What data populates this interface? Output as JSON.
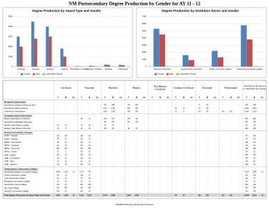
{
  "title": "NM Postsecondary Degree Production by Gender for AY 11 - 12",
  "chart_data": [
    {
      "type": "bar",
      "title": "Degree Production by Award Type and Gender",
      "categories": [
        "Certificate",
        "Associate",
        "Bachelor",
        "Masters",
        "Post Masters Certificate",
        "Graduate Certificate",
        "Doctorate",
        "Professional"
      ],
      "series": [
        {
          "name": "Female",
          "color": "#4f81bd",
          "values": [
            3000,
            4500,
            4000,
            1800,
            40,
            90,
            190,
            170
          ]
        },
        {
          "name": "Male",
          "color": "#c0504d",
          "values": [
            2000,
            2800,
            3000,
            1000,
            20,
            40,
            170,
            130
          ]
        },
        {
          "name": "Unidentified Gender",
          "color": "#9bbb59",
          "values": [
            30,
            40,
            20,
            10,
            0,
            0,
            0,
            0
          ]
        }
      ],
      "ylim": [
        0,
        5000
      ],
      "yticks": [
        0,
        1000,
        2000,
        3000,
        4000,
        5000
      ],
      "grid": true
    },
    {
      "type": "bar",
      "title": "Degree Production by Institution Sector and Gender",
      "categories": [
        "Research Universities",
        "Comprehensive Universities",
        "Branch Community Colleges",
        "Independent Community Colleges"
      ],
      "series": [
        {
          "name": "Female",
          "color": "#4f81bd",
          "values": [
            5300,
            1600,
            2200,
            5800
          ]
        },
        {
          "name": "Male",
          "color": "#c0504d",
          "values": [
            4500,
            900,
            1300,
            3800
          ]
        },
        {
          "name": "Unidentified Gender",
          "color": "#9bbb59",
          "values": [
            20,
            10,
            30,
            60
          ]
        }
      ],
      "ylim": [
        0,
        7000
      ],
      "yticks": [
        0,
        1000,
        2000,
        3000,
        4000,
        5000,
        6000,
        7000
      ],
      "grid": true
    }
  ],
  "table": {
    "groups": [
      "Certificate",
      "Associate",
      "Bachelor",
      "Masters",
      "Post Masters Certificate",
      "Graduate Certificate",
      "Doctorate",
      "Professional",
      "Total Degree Production by Institution and Gender"
    ],
    "subheaders": [
      "F",
      "M",
      "N+"
    ],
    "sections": [
      {
        "title": "Research Universities",
        "rows": [
          {
            "label": "New Mexico Institute of Mining & Tech",
            "cells": [
              "-",
              "-",
              "-",
              "-",
              "-",
              "-",
              "65",
              "188",
              "-",
              "54",
              "120",
              "-",
              "-",
              "-",
              "-",
              "-",
              "-",
              "-",
              "6",
              "22",
              "-",
              "-",
              "-",
              "-",
              "125",
              "330",
              "-"
            ]
          },
          {
            "label": "New Mexico State University",
            "cells": [
              "-",
              "-",
              "-",
              "-",
              "-",
              "-",
              "1,371",
              "1,067",
              "-",
              "563",
              "340",
              "-",
              "-",
              "-",
              "-",
              "25",
              "12",
              "-",
              "61",
              "48",
              "-",
              "-",
              "-",
              "-",
              "2,020",
              "1,467",
              "-"
            ]
          },
          {
            "label": "University of New Mexico",
            "cells": [
              "-",
              "-",
              "-",
              "-",
              "-",
              "-",
              "1,961",
              "1,393",
              "-",
              "789",
              "500",
              "-",
              "-",
              "-",
              "-",
              "21",
              "8",
              "-",
              "114",
              "95",
              "-",
              "161",
              "122",
              "-",
              "3,046",
              "2,118",
              "-"
            ]
          }
        ]
      },
      {
        "title": "Comprehensive Universities",
        "rows": [
          {
            "label": "Eastern New Mexico University",
            "cells": [
              "-",
              "-",
              "-",
              "28",
              "12",
              "-",
              "432",
              "270",
              "-",
              "230",
              "98",
              "-",
              "-",
              "-",
              "-",
              "-",
              "-",
              "-",
              "-",
              "-",
              "-",
              "-",
              "-",
              "-",
              "690",
              "380",
              "-"
            ]
          },
          {
            "label": "New Mexico Highlands University",
            "cells": [
              "-",
              "-",
              "-",
              "-",
              "-",
              "-",
              "245",
              "140",
              "-",
              "310",
              "150",
              "-",
              "-",
              "-",
              "-",
              "-",
              "-",
              "-",
              "-",
              "-",
              "-",
              "-",
              "-",
              "-",
              "555",
              "290",
              "-"
            ]
          },
          {
            "label": "Northern New Mexico College",
            "cells": [
              "40",
              "22",
              "-",
              "75",
              "38",
              "-",
              "52",
              "20",
              "-",
              "-",
              "-",
              "-",
              "-",
              "-",
              "-",
              "-",
              "-",
              "-",
              "-",
              "-",
              "-",
              "-",
              "-",
              "-",
              "167",
              "80",
              "-"
            ]
          },
          {
            "label": "Western New Mexico University",
            "cells": [
              "12",
              "8",
              "-",
              "40",
              "20",
              "-",
              "150",
              "80",
              "-",
              "90",
              "40",
              "-",
              "-",
              "-",
              "-",
              "-",
              "-",
              "-",
              "-",
              "-",
              "-",
              "-",
              "-",
              "-",
              "292",
              "148",
              "-"
            ]
          }
        ]
      },
      {
        "title": "Branch Community Colleges",
        "rows": [
          {
            "label": "ENMU - Roswell",
            "cells": [
              "220",
              "180",
              "-",
              "190",
              "110",
              "-",
              "-",
              "-",
              "-",
              "-",
              "-",
              "-",
              "-",
              "-",
              "-",
              "-",
              "-",
              "-",
              "-",
              "-",
              "-",
              "-",
              "-",
              "-",
              "410",
              "290",
              "-"
            ]
          },
          {
            "label": "ENMU - Ruidoso",
            "cells": [
              "48",
              "40",
              "-",
              "30",
              "12",
              "-",
              "-",
              "-",
              "-",
              "-",
              "-",
              "-",
              "-",
              "-",
              "-",
              "-",
              "-",
              "-",
              "-",
              "-",
              "-",
              "-",
              "-",
              "-",
              "78",
              "52",
              "-"
            ]
          },
          {
            "label": "NMSU - Alamogordo",
            "cells": [
              "60",
              "42",
              "-",
              "120",
              "70",
              "-",
              "-",
              "-",
              "-",
              "-",
              "-",
              "-",
              "-",
              "-",
              "-",
              "-",
              "-",
              "-",
              "-",
              "-",
              "-",
              "-",
              "-",
              "-",
              "180",
              "112",
              "-"
            ]
          },
          {
            "label": "NMSU - Carlsbad",
            "cells": [
              "40",
              "28",
              "-",
              "80",
              "40",
              "-",
              "-",
              "-",
              "-",
              "-",
              "-",
              "-",
              "-",
              "-",
              "-",
              "-",
              "-",
              "-",
              "-",
              "-",
              "-",
              "-",
              "-",
              "-",
              "120",
              "68",
              "-"
            ]
          },
          {
            "label": "NMSU - Dona Ana",
            "cells": [
              "260",
              "210",
              "-",
              "430",
              "250",
              "-",
              "-",
              "-",
              "-",
              "-",
              "-",
              "-",
              "-",
              "-",
              "-",
              "-",
              "-",
              "-",
              "-",
              "-",
              "-",
              "-",
              "-",
              "-",
              "690",
              "460",
              "-"
            ]
          },
          {
            "label": "NMSU - Grants",
            "cells": [
              "20",
              "8",
              "-",
              "45",
              "15",
              "-",
              "-",
              "-",
              "-",
              "-",
              "-",
              "-",
              "-",
              "-",
              "-",
              "-",
              "-",
              "-",
              "-",
              "-",
              "-",
              "-",
              "-",
              "-",
              "65",
              "23",
              "-"
            ]
          },
          {
            "label": "UNM - Gallup",
            "cells": [
              "110",
              "60",
              "-",
              "140",
              "60",
              "-",
              "-",
              "-",
              "-",
              "-",
              "-",
              "-",
              "-",
              "-",
              "-",
              "-",
              "-",
              "-",
              "-",
              "-",
              "-",
              "-",
              "-",
              "-",
              "250",
              "120",
              "-"
            ]
          },
          {
            "label": "UNM - Los Alamos",
            "cells": [
              "15",
              "10",
              "-",
              "30",
              "20",
              "-",
              "-",
              "-",
              "-",
              "-",
              "-",
              "-",
              "-",
              "-",
              "-",
              "-",
              "-",
              "-",
              "-",
              "-",
              "-",
              "-",
              "-",
              "-",
              "45",
              "30",
              "-"
            ]
          },
          {
            "label": "UNM - Taos",
            "cells": [
              "70",
              "30",
              "-",
              "50",
              "20",
              "-",
              "-",
              "-",
              "-",
              "-",
              "-",
              "-",
              "-",
              "-",
              "-",
              "-",
              "-",
              "-",
              "-",
              "-",
              "-",
              "-",
              "-",
              "-",
              "120",
              "50",
              "-"
            ]
          },
          {
            "label": "UNM - Valencia",
            "cells": [
              "50",
              "30",
              "-",
              "110",
              "50",
              "-",
              "-",
              "-",
              "-",
              "-",
              "-",
              "-",
              "-",
              "-",
              "-",
              "-",
              "-",
              "-",
              "-",
              "-",
              "-",
              "-",
              "-",
              "-",
              "160",
              "80",
              "-"
            ]
          }
        ]
      },
      {
        "title": "Independent Community Colleges",
        "rows": [
          {
            "label": "Central New Mexico Community College",
            "cells": [
              "1,860",
              "1,150",
              "16",
              "1,272",
              "736",
              "-",
              "-",
              "-",
              "-",
              "-",
              "-",
              "-",
              "-",
              "-",
              "-",
              "-",
              "-",
              "-",
              "-",
              "-",
              "-",
              "-",
              "-",
              "-",
              "3,132",
              "1,886",
              "16"
            ]
          },
          {
            "label": "Clovis Community College",
            "cells": [
              "90",
              "60",
              "-",
              "160",
              "70",
              "-",
              "-",
              "-",
              "-",
              "-",
              "-",
              "-",
              "-",
              "-",
              "-",
              "-",
              "-",
              "-",
              "-",
              "-",
              "-",
              "-",
              "-",
              "-",
              "250",
              "130",
              "-"
            ]
          },
          {
            "label": "Luna Community College",
            "cells": [
              "60",
              "40",
              "-",
              "70",
              "30",
              "-",
              "-",
              "-",
              "-",
              "-",
              "-",
              "-",
              "-",
              "-",
              "-",
              "-",
              "-",
              "-",
              "-",
              "-",
              "-",
              "-",
              "-",
              "-",
              "130",
              "70",
              "-"
            ]
          },
          {
            "label": "Mesalands Community College",
            "cells": [
              "20",
              "40",
              "-",
              "25",
              "20",
              "-",
              "-",
              "-",
              "-",
              "-",
              "-",
              "-",
              "-",
              "-",
              "-",
              "-",
              "-",
              "-",
              "-",
              "-",
              "-",
              "-",
              "-",
              "-",
              "45",
              "60",
              "-"
            ]
          },
          {
            "label": "New Mexico Junior College",
            "cells": [
              "100",
              "90",
              "-",
              "220",
              "120",
              "-",
              "-",
              "-",
              "-",
              "-",
              "-",
              "-",
              "-",
              "-",
              "-",
              "-",
              "-",
              "-",
              "-",
              "-",
              "-",
              "-",
              "-",
              "-",
              "320",
              "210",
              "-"
            ]
          },
          {
            "label": "San Juan College",
            "cells": [
              "420",
              "380",
              "-",
              "410",
              "260",
              "-",
              "-",
              "-",
              "-",
              "-",
              "-",
              "-",
              "-",
              "-",
              "-",
              "-",
              "-",
              "-",
              "-",
              "-",
              "-",
              "-",
              "-",
              "-",
              "830",
              "640",
              "-"
            ]
          },
          {
            "label": "Santa Fe Community College",
            "cells": [
              "180",
              "90",
              "-",
              "190",
              "90",
              "-",
              "-",
              "-",
              "-",
              "-",
              "-",
              "-",
              "-",
              "-",
              "-",
              "-",
              "-",
              "-",
              "-",
              "-",
              "-",
              "-",
              "-",
              "-",
              "370",
              "180",
              "-"
            ]
          }
        ]
      }
    ],
    "total": {
      "label": "Total Degree Production by Award Type and Gender",
      "cells": [
        "3,435",
        "2,398",
        "16",
        "4,116",
        "2,107",
        "-",
        "4,007",
        "3,089",
        "-",
        "1,997",
        "1,248",
        "-",
        "-",
        "-",
        "-",
        "46",
        "20",
        "-",
        "181",
        "165",
        "-",
        "161",
        "122",
        "-",
        "13,945",
        "9,123",
        "16"
      ]
    }
  },
  "footer": "NMHED Planning and Research Division"
}
